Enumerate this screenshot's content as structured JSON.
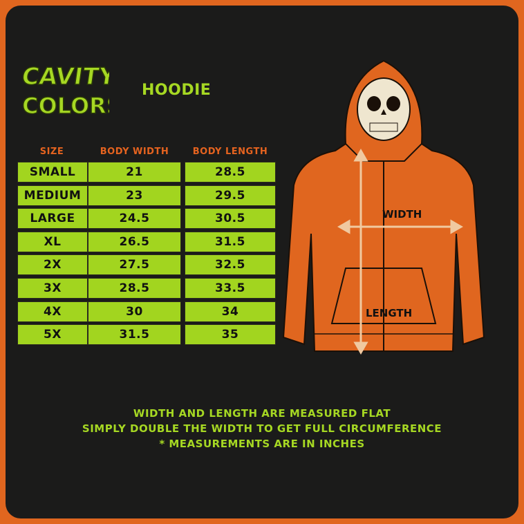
{
  "brand": {
    "logo_text": [
      "CAVITY",
      "COLORS"
    ]
  },
  "title": "HOODIE",
  "table": {
    "headers": [
      "SIZE",
      "BODY WIDTH",
      "BODY LENGTH"
    ],
    "rows": [
      [
        "SMALL",
        "21",
        "28.5"
      ],
      [
        "MEDIUM",
        "23",
        "29.5"
      ],
      [
        "LARGE",
        "24.5",
        "30.5"
      ],
      [
        "XL",
        "26.5",
        "31.5"
      ],
      [
        "2X",
        "27.5",
        "32.5"
      ],
      [
        "3X",
        "28.5",
        "33.5"
      ],
      [
        "4X",
        "30",
        "34"
      ],
      [
        "5X",
        "31.5",
        "35"
      ]
    ]
  },
  "diagram": {
    "width_label": "WIDTH",
    "length_label": "LENGTH"
  },
  "notes": [
    "WIDTH AND LENGTH ARE MEASURED FLAT",
    "SIMPLY DOUBLE THE WIDTH TO GET FULL CIRCUMFERENCE",
    "* MEASUREMENTS ARE IN INCHES"
  ],
  "colors": {
    "accent_green": "#a2d51f",
    "accent_orange": "#e0661f",
    "background": "#1b1b1a",
    "arrow": "#f0c9a0"
  }
}
